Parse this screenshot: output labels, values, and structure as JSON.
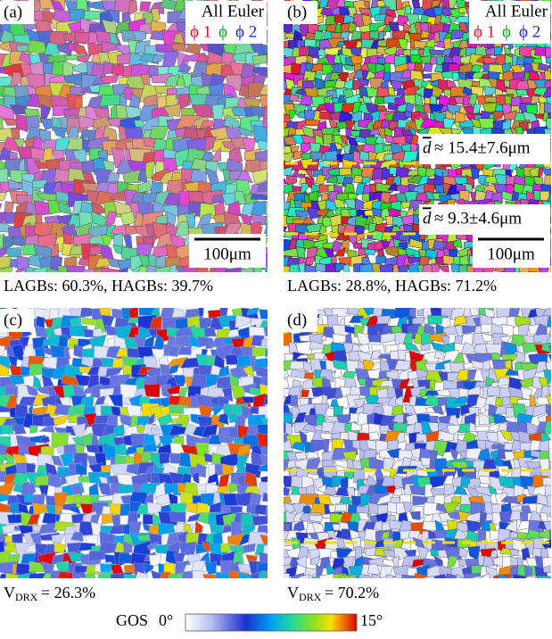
{
  "panels": [
    {
      "label": "(a)",
      "legend": {
        "title": "All Euler",
        "phi1": "ϕ 1",
        "phi": "ϕ",
        "phi2": "ϕ 2"
      },
      "scale_bar": "100μm",
      "caption": "LAGBs: 60.3%, HAGBs: 39.7%"
    },
    {
      "label": "(b)",
      "legend": {
        "title": "All Euler",
        "phi1": "ϕ 1",
        "phi": "ϕ",
        "phi2": "ϕ 2"
      },
      "scale_bar": "100μm",
      "caption": "LAGBs: 28.8%, HAGBs: 71.2%",
      "grain_sizes": [
        {
          "symbol": "d",
          "value": "≈ 15.4±7.6μm"
        },
        {
          "symbol": "d",
          "value": "≈ 9.3±4.6μm"
        }
      ]
    },
    {
      "label": "(c)",
      "caption": {
        "symbol": "V",
        "subscript": "DRX",
        "value": "= 26.3%"
      }
    },
    {
      "label": "(d)",
      "caption": {
        "symbol": "V",
        "subscript": "DRX",
        "value": "= 70.2%"
      }
    }
  ],
  "colorbar": {
    "title": "GOS",
    "min_label": "0°",
    "max_label": "15°"
  }
}
